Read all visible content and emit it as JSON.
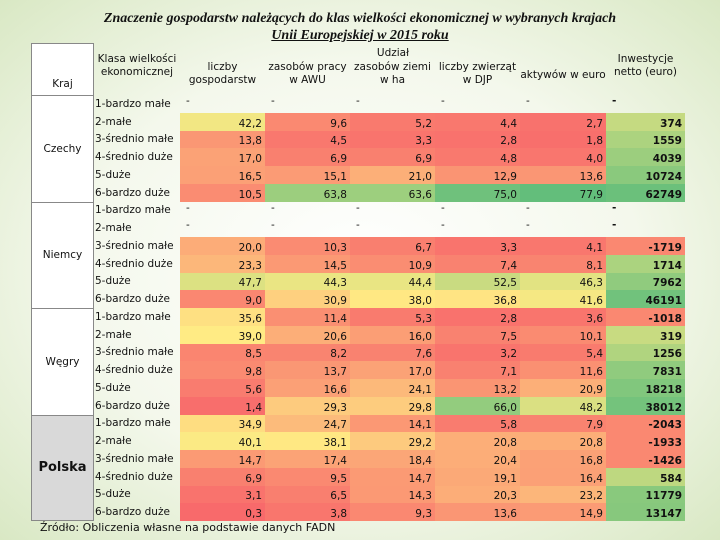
{
  "title_line1": "Znaczenie gospodarstw należących do klas wielkości ekonomicznej w wybranych krajach",
  "title_line2": "Unii Europejskiej w 2015 roku",
  "header": {
    "kraj": "Kraj",
    "klasa": "Klasa wielkości ekonomicznej",
    "udzial": "Udział",
    "liczby": "liczby gospodarstw",
    "zasoby_pracy": "zasobów pracy w AWU",
    "zasoby_ziemi": "zasobów ziemi w ha",
    "zwierzat": "liczby zwierząt w DJP",
    "aktywow": "aktywów w euro",
    "inwestycje": "Inwestycje netto (euro)"
  },
  "classes": [
    "1-bardzo małe",
    "2-małe",
    "3-średnio małe",
    "4-średnio duże",
    "5-duże",
    "6-bardzo duże"
  ],
  "countries": [
    {
      "name": "Czechy",
      "rows": [
        [
          "-",
          "-",
          "-",
          "-",
          "-",
          "-"
        ],
        [
          "42,2",
          "9,6",
          "5,2",
          "4,4",
          "2,7",
          "374"
        ],
        [
          "13,8",
          "4,5",
          "3,3",
          "2,8",
          "1,8",
          "1559"
        ],
        [
          "17,0",
          "6,9",
          "6,9",
          "4,8",
          "4,0",
          "4039"
        ],
        [
          "16,5",
          "15,1",
          "21,0",
          "12,9",
          "13,6",
          "10724"
        ],
        [
          "10,5",
          "63,8",
          "63,6",
          "75,0",
          "77,9",
          "62749"
        ]
      ]
    },
    {
      "name": "Niemcy",
      "rows": [
        [
          "-",
          "-",
          "-",
          "-",
          "-",
          "-"
        ],
        [
          "-",
          "-",
          "-",
          "-",
          "-",
          "-"
        ],
        [
          "20,0",
          "10,3",
          "6,7",
          "3,3",
          "4,1",
          "-1719"
        ],
        [
          "23,3",
          "14,5",
          "10,9",
          "7,4",
          "8,1",
          "1714"
        ],
        [
          "47,7",
          "44,3",
          "44,4",
          "52,5",
          "46,3",
          "7962"
        ],
        [
          "9,0",
          "30,9",
          "38,0",
          "36,8",
          "41,6",
          "46191"
        ]
      ]
    },
    {
      "name": "Węgry",
      "rows": [
        [
          "35,6",
          "11,4",
          "5,3",
          "2,8",
          "3,6",
          "-1018"
        ],
        [
          "39,0",
          "20,6",
          "16,0",
          "7,5",
          "10,1",
          "319"
        ],
        [
          "8,5",
          "8,2",
          "7,6",
          "3,2",
          "5,4",
          "1256"
        ],
        [
          "9,8",
          "13,7",
          "17,0",
          "7,1",
          "11,6",
          "7831"
        ],
        [
          "5,6",
          "16,6",
          "24,1",
          "13,2",
          "20,9",
          "18218"
        ],
        [
          "1,4",
          "29,3",
          "29,8",
          "66,0",
          "48,2",
          "38012"
        ]
      ]
    },
    {
      "name": "Polska",
      "rows": [
        [
          "34,9",
          "24,7",
          "14,1",
          "5,8",
          "7,9",
          "-2043"
        ],
        [
          "40,1",
          "38,1",
          "29,2",
          "20,8",
          "20,8",
          "-1933"
        ],
        [
          "14,7",
          "17,4",
          "18,4",
          "20,4",
          "16,8",
          "-1426"
        ],
        [
          "6,9",
          "9,5",
          "14,7",
          "19,1",
          "16,4",
          "584"
        ],
        [
          "3,1",
          "6,5",
          "14,3",
          "20,3",
          "23,2",
          "11779"
        ],
        [
          "0,3",
          "3,8",
          "9,3",
          "13,6",
          "14,9",
          "13147"
        ]
      ]
    }
  ],
  "colors": {
    "red": "#f8696b",
    "yellow": "#ffeb84",
    "green": "#63be7b"
  },
  "source": "Źródło: Obliczenia własne na podstawie danych FADN"
}
